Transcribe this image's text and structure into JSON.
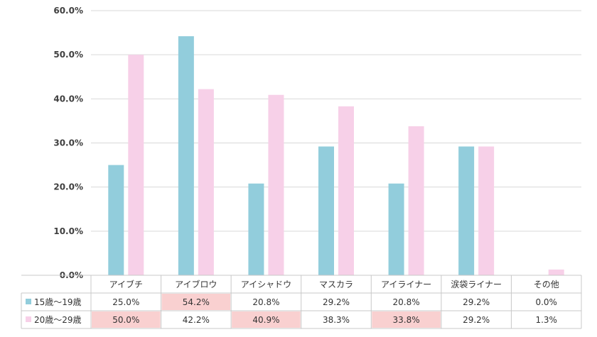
{
  "chart_data": {
    "type": "bar",
    "categories": [
      "アイブチ",
      "アイブロウ",
      "アイシャドウ",
      "マスカラ",
      "アイライナー",
      "涙袋ライナー",
      "その他"
    ],
    "series": [
      {
        "name": "15歳～19歳",
        "color": "#92cddc",
        "values": [
          25.0,
          54.2,
          20.8,
          29.2,
          20.8,
          29.2,
          0.0
        ],
        "labels": [
          "25.0%",
          "54.2%",
          "20.8%",
          "29.2%",
          "20.8%",
          "29.2%",
          "0.0%"
        ]
      },
      {
        "name": "20歳～29歳",
        "color": "#f7d0e8",
        "values": [
          50.0,
          42.2,
          40.9,
          38.3,
          33.8,
          29.2,
          1.3
        ],
        "labels": [
          "50.0%",
          "42.2%",
          "40.9%",
          "38.3%",
          "33.8%",
          "29.2%",
          "1.3%"
        ]
      }
    ],
    "highlight_color": "#f9d0d0",
    "highlighted_cells": [
      [
        0,
        1
      ],
      [
        1,
        0
      ],
      [
        1,
        2
      ],
      [
        1,
        4
      ]
    ],
    "yticks": [
      "0.0%",
      "10.0%",
      "20.0%",
      "30.0%",
      "40.0%",
      "50.0%",
      "60.0%"
    ],
    "ylim": [
      0,
      60
    ],
    "grid": true,
    "legend": "data-table"
  }
}
